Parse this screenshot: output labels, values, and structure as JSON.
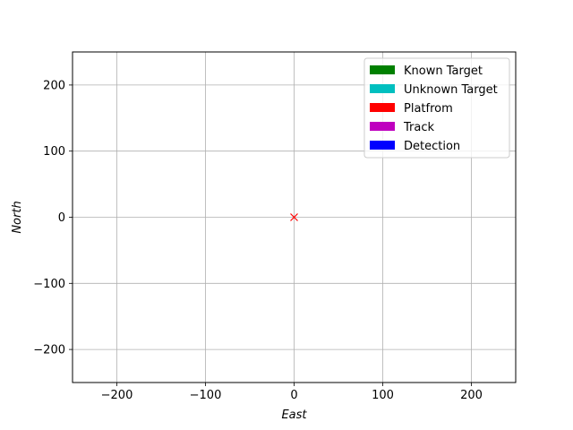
{
  "chart_data": {
    "type": "scatter",
    "title": "",
    "xlabel": "East",
    "ylabel": "North",
    "xlim": [
      -250,
      250
    ],
    "ylim": [
      -250,
      250
    ],
    "xticks": [
      -200,
      -100,
      0,
      100,
      200
    ],
    "yticks": [
      -200,
      -100,
      0,
      100,
      200
    ],
    "xtick_labels": [
      "−200",
      "−100",
      "0",
      "100",
      "200"
    ],
    "ytick_labels": [
      "−200",
      "−100",
      "0",
      "100",
      "200"
    ],
    "grid": true,
    "legend_position": "top-right",
    "legend": [
      {
        "label": "Known Target",
        "color": "#008000"
      },
      {
        "label": "Unknown Target",
        "color": "#00bfbf"
      },
      {
        "label": "Platfrom",
        "color": "#ff0000"
      },
      {
        "label": "Track",
        "color": "#bf00bf"
      },
      {
        "label": "Detection",
        "color": "#0000ff"
      }
    ],
    "series": [
      {
        "marker": "x",
        "color": "#ff0000",
        "points": [
          {
            "x": 0,
            "y": 0
          }
        ]
      }
    ]
  }
}
